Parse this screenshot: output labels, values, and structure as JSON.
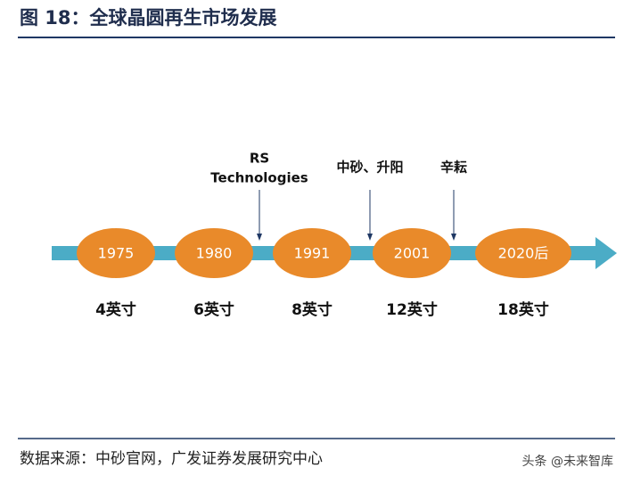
{
  "header": {
    "title": "图 18：全球晶圆再生市场发展"
  },
  "timeline": {
    "nodes": [
      {
        "year": "1975",
        "size": "4英寸"
      },
      {
        "year": "1980",
        "size": "6英寸"
      },
      {
        "year": "1991",
        "size": "8英寸"
      },
      {
        "year": "2001",
        "size": "12英寸"
      },
      {
        "year": "2020后",
        "size": "18英寸"
      }
    ],
    "events": [
      {
        "lines": [
          "RS",
          "Technologies"
        ]
      },
      {
        "lines": [
          "中砂、升阳"
        ]
      },
      {
        "lines": [
          "辛耘"
        ]
      }
    ]
  },
  "footer": {
    "source": "数据来源：中砂官网，广发证券发展研究中心",
    "watermark": "头条 @未来智库"
  }
}
